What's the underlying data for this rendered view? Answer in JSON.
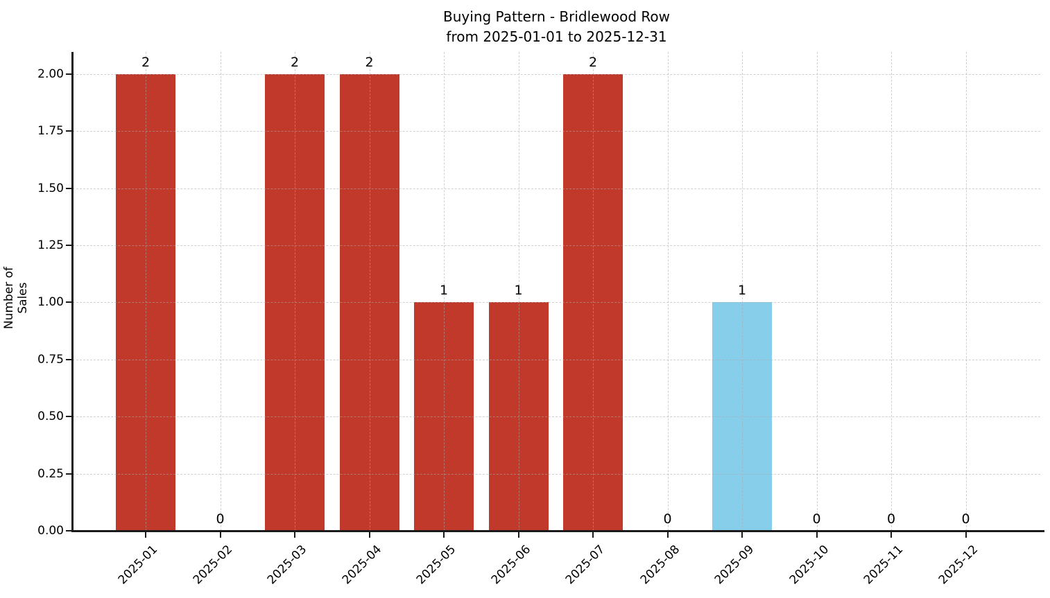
{
  "title": {
    "line1": "Buying Pattern - Bridlewood Row",
    "line2": "from 2025-01-01 to 2025-12-31"
  },
  "chart_data": {
    "type": "bar",
    "title": "Buying Pattern - Bridlewood Row\nfrom 2025-01-01 to 2025-12-31",
    "xlabel": "",
    "ylabel": "Number of Sales",
    "categories": [
      "2025-01",
      "2025-02",
      "2025-03",
      "2025-04",
      "2025-05",
      "2025-06",
      "2025-07",
      "2025-08",
      "2025-09",
      "2025-10",
      "2025-11",
      "2025-12"
    ],
    "values": [
      2,
      0,
      2,
      2,
      1,
      1,
      2,
      0,
      1,
      0,
      0,
      0
    ],
    "bar_value_labels": [
      "2",
      "0",
      "2",
      "2",
      "1",
      "1",
      "2",
      "0",
      "1",
      "0",
      "0",
      "0"
    ],
    "bar_colors": [
      "#c0392b",
      "#c0392b",
      "#c0392b",
      "#c0392b",
      "#c0392b",
      "#c0392b",
      "#c0392b",
      "#c0392b",
      "#87ceeb",
      "#c0392b",
      "#c0392b",
      "#c0392b"
    ],
    "yticks": [
      0.0,
      0.25,
      0.5,
      0.75,
      1.0,
      1.25,
      1.5,
      1.75,
      2.0
    ],
    "ytick_labels": [
      "0.00",
      "0.25",
      "0.50",
      "0.75",
      "1.00",
      "1.25",
      "1.50",
      "1.75",
      "2.00"
    ],
    "ylim": [
      0,
      2.097
    ],
    "grid": true,
    "grid_linestyle": "dashed",
    "legend_position": "none",
    "colors": {
      "default_bar": "#c0392b",
      "highlight_bar": "#87ceeb",
      "grid": "#aaaaaa",
      "axis": "#1a1a1a",
      "text": "#000000",
      "background": "#ffffff"
    }
  }
}
